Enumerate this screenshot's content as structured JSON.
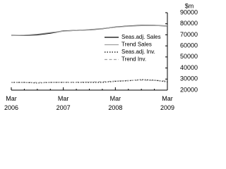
{
  "chart_data": {
    "type": "line",
    "y_label": "$m",
    "categories": [
      "Mar 2006",
      null,
      null,
      null,
      "Mar 2007",
      null,
      null,
      null,
      "Mar 2008",
      null,
      null,
      null,
      "Mar 2009"
    ],
    "series": [
      {
        "name": "Seas.adj. Sales",
        "color": "#000000",
        "style": "solid",
        "values": [
          69500,
          69500,
          70000,
          71500,
          73500,
          74000,
          74500,
          75500,
          77000,
          78000,
          78500,
          78500,
          78000
        ]
      },
      {
        "name": "Trend Sales",
        "color": "#a0a0a0",
        "style": "solid",
        "values": [
          69300,
          69700,
          70500,
          72000,
          73300,
          74000,
          74700,
          75700,
          76900,
          77800,
          78300,
          78400,
          78200
        ]
      },
      {
        "name": "Seas.adj. Inv.",
        "color": "#000000",
        "style": "dotted",
        "values": [
          27000,
          27000,
          26500,
          27000,
          27000,
          27000,
          27000,
          27000,
          28000,
          28500,
          29500,
          29000,
          27500
        ]
      },
      {
        "name": "Trend Inv.",
        "color": "#a0a0a0",
        "style": "dashed",
        "values": [
          26900,
          26900,
          26900,
          27000,
          27100,
          27200,
          27300,
          27600,
          28100,
          28700,
          29000,
          28800,
          28200
        ]
      }
    ],
    "ylim": [
      20000,
      90000
    ],
    "yticks": [
      20000,
      30000,
      40000,
      50000,
      60000,
      70000,
      80000,
      90000
    ],
    "grid": false,
    "legend": "upper right",
    "y_axis_side": "right"
  }
}
